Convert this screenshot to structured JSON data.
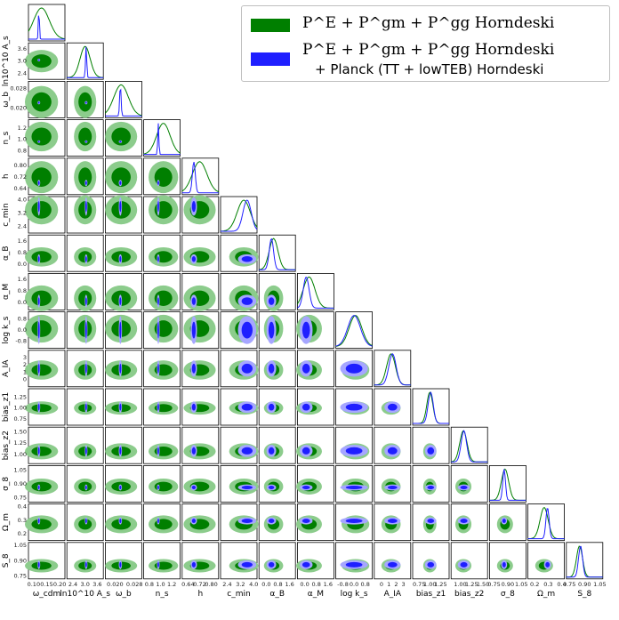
{
  "legend": {
    "entries": [
      {
        "label": "P^E + P^gm + P^gg Horndeski",
        "color": "#007f00"
      },
      {
        "label": "P^E + P^gm + P^gg Horndeski",
        "label2": "+ Planck (TT + lowTEB) Horndeski",
        "color": "#1f1fff"
      }
    ]
  },
  "chart_data": {
    "type": "corner",
    "series": [
      {
        "name": "P^E + P^gm + P^gg Horndeski",
        "color": "#007f00",
        "fill_outer": "#8ccc8c",
        "fill_inner": "#007f00"
      },
      {
        "name": "P^E + P^gm + P^gg Horndeski + Planck (TT + lowTEB) Horndeski",
        "color": "#1f1fff",
        "fill_outer": "#a6a6ff",
        "fill_inner": "#1f1fff"
      }
    ],
    "parameters": [
      {
        "label": "ω_cdm",
        "ticks": [
          "0.10",
          "0.15",
          "0.20"
        ],
        "range": [
          0.08,
          0.22
        ],
        "center": 0.13,
        "width": 0.03,
        "planck_center": 0.12,
        "planck_width": 0.002
      },
      {
        "label": "ln10^10 A_s",
        "ticks": [
          "2.4",
          "3.0",
          "3.6"
        ],
        "range": [
          2.1,
          3.9
        ],
        "center": 3.0,
        "width": 0.25,
        "planck_center": 3.05,
        "planck_width": 0.03
      },
      {
        "label": "ω_b",
        "ticks": [
          "0.020",
          "0.028"
        ],
        "range": [
          0.016,
          0.031
        ],
        "center": 0.0225,
        "width": 0.003,
        "planck_center": 0.0222,
        "planck_width": 0.0003
      },
      {
        "label": "n_s",
        "ticks": [
          "0.8",
          "1.0",
          "1.2"
        ],
        "range": [
          0.7,
          1.35
        ],
        "center": 1.05,
        "width": 0.12,
        "planck_center": 0.96,
        "planck_width": 0.01
      },
      {
        "label": "h",
        "ticks": [
          "0.64",
          "0.72",
          "0.80"
        ],
        "range": [
          0.6,
          0.85
        ],
        "center": 0.72,
        "width": 0.05,
        "planck_center": 0.68,
        "planck_width": 0.01
      },
      {
        "label": "c_min",
        "ticks": [
          "2.4",
          "3.2",
          "4.0"
        ],
        "range": [
          2.0,
          4.2
        ],
        "center": 3.4,
        "width": 0.4,
        "planck_center": 3.6,
        "planck_width": 0.25
      },
      {
        "label": "α_B",
        "ticks": [
          "0.0",
          "0.8",
          "1.6"
        ],
        "range": [
          -0.5,
          2.0
        ],
        "center": 0.5,
        "width": 0.3,
        "planck_center": 0.35,
        "planck_width": 0.15
      },
      {
        "label": "α_M",
        "ticks": [
          "0.0",
          "0.8",
          "1.6"
        ],
        "range": [
          -0.5,
          2.0
        ],
        "center": 0.3,
        "width": 0.4,
        "planck_center": 0.1,
        "planck_width": 0.2
      },
      {
        "label": "log k_s",
        "ticks": [
          "-0.8",
          "0.0",
          "0.8"
        ],
        "range": [
          -1.3,
          1.3
        ],
        "center": 0.1,
        "width": 0.45,
        "planck_center": 0.0,
        "planck_width": 0.45
      },
      {
        "label": "A_IA",
        "ticks": [
          "0",
          "1",
          "2",
          "3"
        ],
        "range": [
          -1,
          4
        ],
        "center": 1.3,
        "width": 0.6,
        "planck_center": 1.5,
        "planck_width": 0.5
      },
      {
        "label": "bias_z1",
        "ticks": [
          "0.75",
          "1.00",
          "1.25"
        ],
        "range": [
          0.6,
          1.45
        ],
        "center": 1.0,
        "width": 0.07,
        "planck_center": 1.02,
        "planck_width": 0.06
      },
      {
        "label": "bias_z2",
        "ticks": [
          "1.00",
          "1.25",
          "1.50"
        ],
        "range": [
          0.8,
          1.6
        ],
        "center": 1.07,
        "width": 0.08,
        "planck_center": 1.08,
        "planck_width": 0.06
      },
      {
        "label": "σ_8",
        "ticks": [
          "0.75",
          "0.90",
          "1.05"
        ],
        "range": [
          0.7,
          1.1
        ],
        "center": 0.87,
        "width": 0.04,
        "planck_center": 0.86,
        "planck_width": 0.015
      },
      {
        "label": "Ω_m",
        "ticks": [
          "0.2",
          "0.3",
          "0.4"
        ],
        "range": [
          0.15,
          0.42
        ],
        "center": 0.27,
        "width": 0.03,
        "planck_center": 0.295,
        "planck_width": 0.012
      },
      {
        "label": "S_8",
        "ticks": [
          "0.75",
          "0.90",
          "1.05"
        ],
        "range": [
          0.72,
          1.08
        ],
        "center": 0.85,
        "width": 0.03,
        "planck_center": 0.86,
        "planck_width": 0.02
      }
    ]
  }
}
